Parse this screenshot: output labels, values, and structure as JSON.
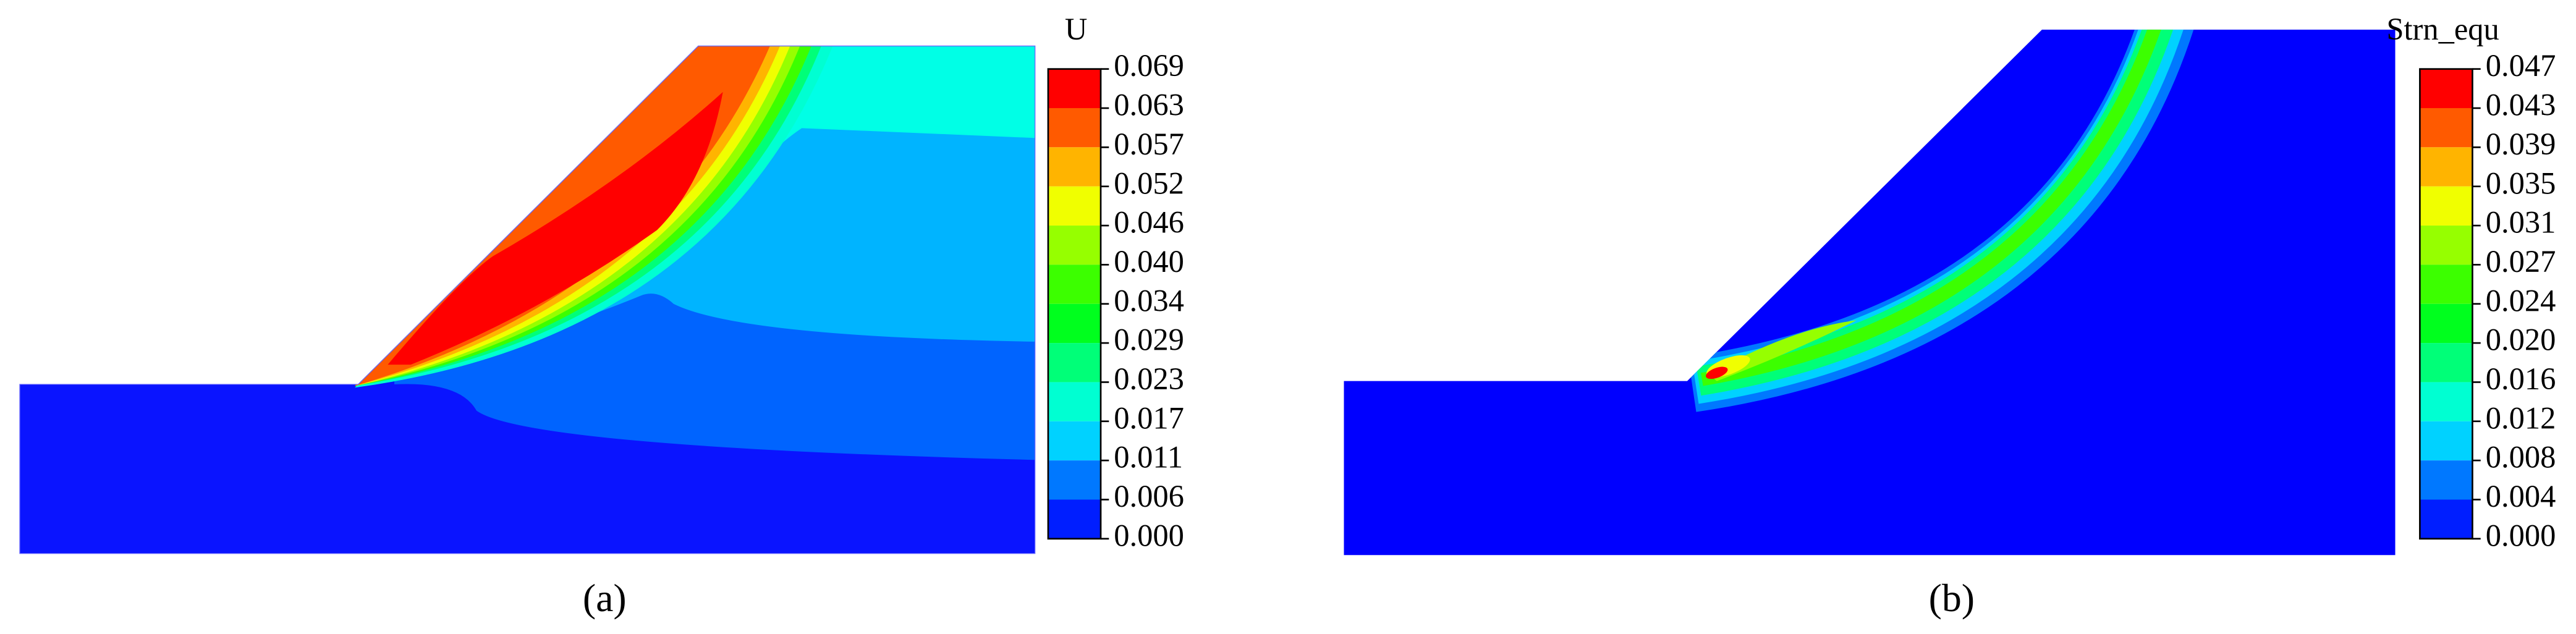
{
  "panels": [
    {
      "legend_title": "U",
      "legend_labels": [
        "0.069",
        "0.063",
        "0.057",
        "0.052",
        "0.046",
        "0.040",
        "0.034",
        "0.029",
        "0.023",
        "0.017",
        "0.011",
        "0.006",
        "0.000"
      ],
      "caption": "(a)"
    },
    {
      "legend_title": "Strn_equ",
      "legend_labels": [
        "0.047",
        "0.043",
        "0.039",
        "0.035",
        "0.031",
        "0.027",
        "0.024",
        "0.020",
        "0.016",
        "0.012",
        "0.008",
        "0.004",
        "0.000"
      ],
      "caption": "(b)"
    }
  ]
}
